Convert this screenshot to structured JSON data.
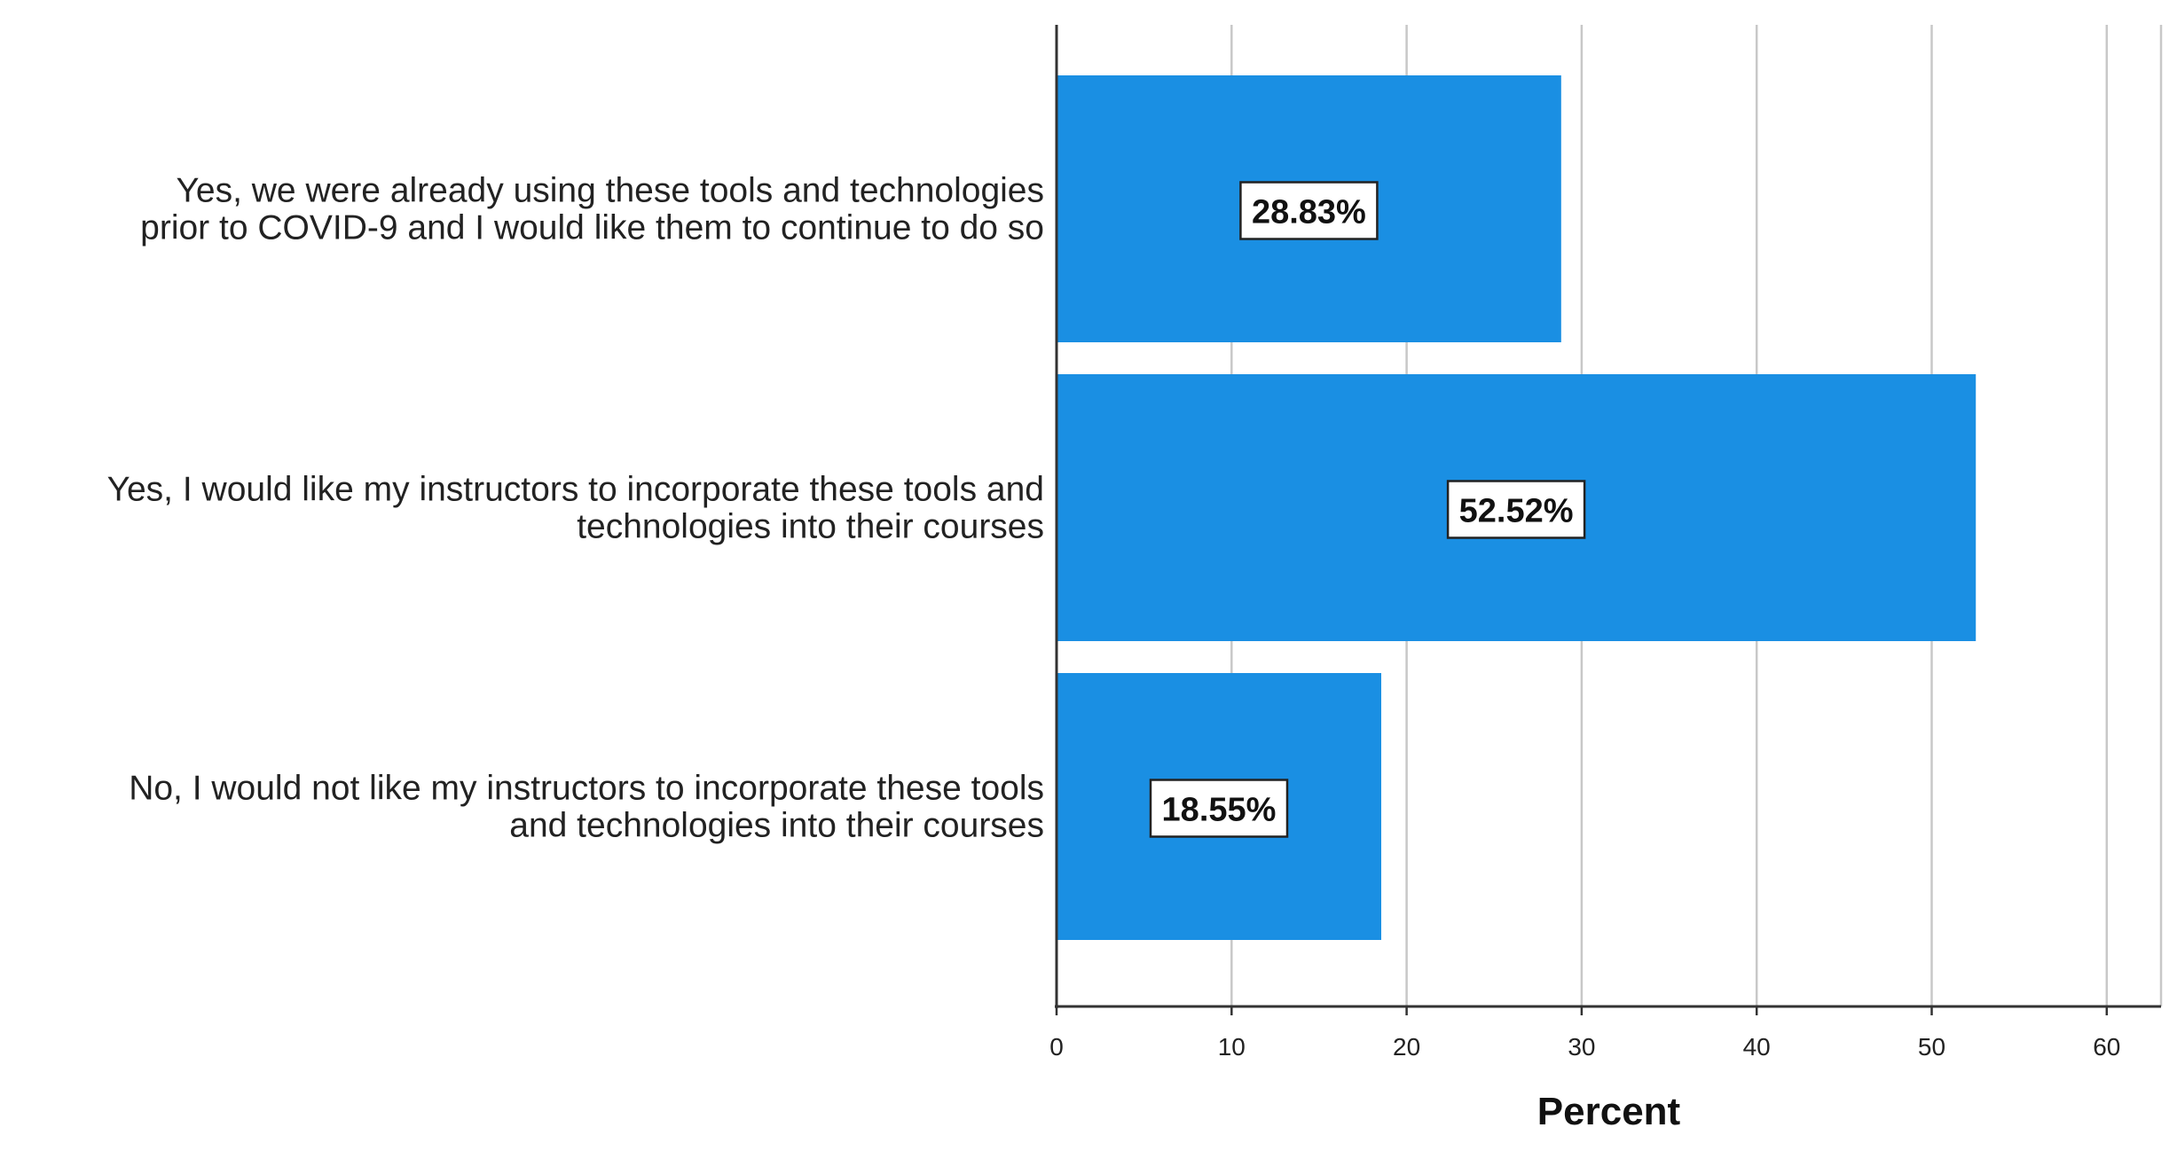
{
  "chart_data": {
    "type": "bar",
    "orientation": "horizontal",
    "categories": [
      [
        "Yes, we were already using these tools and technologies",
        "prior to COVID-9 and I would like them to continue to do so"
      ],
      [
        "Yes, I would like my instructors to incorporate these tools and",
        "technologies into their courses"
      ],
      [
        "No, I would not like my instructors to incorporate these tools",
        "and technologies into their courses"
      ]
    ],
    "values": [
      28.83,
      52.52,
      18.55
    ],
    "data_labels": [
      "28.83%",
      "52.52%",
      "18.55%"
    ],
    "xlabel": "Percent",
    "ylabel": "",
    "xlim": [
      0,
      63
    ],
    "xticks": [
      0,
      10,
      20,
      30,
      40,
      50,
      60
    ],
    "grid": true,
    "legend": "none",
    "bar_color": "#1a8fe3"
  }
}
